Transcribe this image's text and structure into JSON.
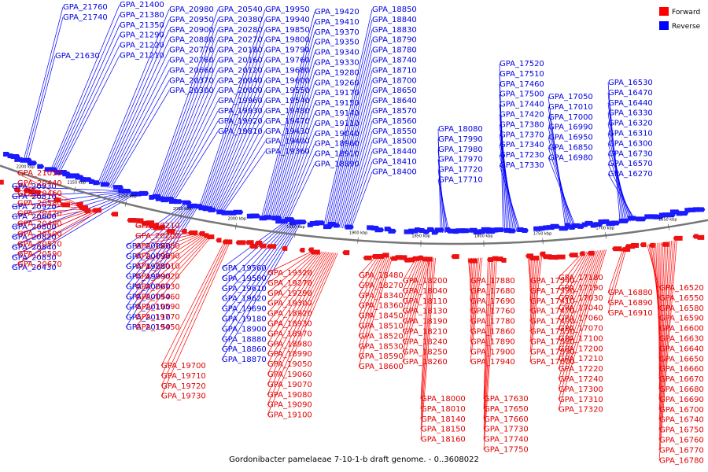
{
  "caption": "Gordonibacter pamelaeae 7-10-1-b draft genome. - 0..3608022",
  "legend": {
    "forward": {
      "label": "Forward",
      "color": "#ff0000"
    },
    "reverse": {
      "label": "Reverse",
      "color": "#0000ff"
    }
  },
  "ticks": [
    "2200 kbp",
    "2150 kbp",
    "2100 kbp",
    "2050 kbp",
    "2000 kbp",
    "1950 kbp",
    "1900 kbp",
    "1850 kbp",
    "1800 kbp",
    "1750 kbp",
    "1700 kbp",
    "1650 kbp"
  ],
  "reverse_labels": [
    "GPA_21760",
    "GPA_21740",
    "GPA_21400",
    "GPA_21380",
    "GPA_21350",
    "GPA_21290",
    "GPA_21220",
    "GPA_21210",
    "GPA_21630",
    "GPA_20980",
    "GPA_20950",
    "GPA_20900",
    "GPA_20880",
    "GPA_20770",
    "GPA_20760",
    "GPA_20660",
    "GPA_20370",
    "GPA_20300",
    "GPA_20540",
    "GPA_20380",
    "GPA_20280",
    "GPA_20270",
    "GPA_20180",
    "GPA_20160",
    "GPA_20120",
    "GPA_20040",
    "GPA_20000",
    "GPA_19960",
    "GPA_19930",
    "GPA_19920",
    "GPA_19810",
    "GPA_19950",
    "GPA_19940",
    "GPA_19850",
    "GPA_19800",
    "GPA_19790",
    "GPA_19760",
    "GPA_19680",
    "GPA_19600",
    "GPA_19550",
    "GPA_19540",
    "GPA_19480",
    "GPA_19470",
    "GPA_19430",
    "GPA_19400",
    "GPA_19360",
    "GPA_19420",
    "GPA_19410",
    "GPA_19370",
    "GPA_19350",
    "GPA_19340",
    "GPA_19330",
    "GPA_19280",
    "GPA_19260",
    "GPA_19170",
    "GPA_19150",
    "GPA_19140",
    "GPA_19110",
    "GPA_19040",
    "GPA_18960",
    "GPA_18910",
    "GPA_18890",
    "GPA_18850",
    "GPA_18840",
    "GPA_18830",
    "GPA_18790",
    "GPA_18780",
    "GPA_18740",
    "GPA_18710",
    "GPA_18700",
    "GPA_18650",
    "GPA_18640",
    "GPA_18570",
    "GPA_18560",
    "GPA_18550",
    "GPA_18500",
    "GPA_18440",
    "GPA_18410",
    "GPA_18400",
    "GPA_18080",
    "GPA_17990",
    "GPA_17980",
    "GPA_17970",
    "GPA_17720",
    "GPA_17710",
    "GPA_17520",
    "GPA_17510",
    "GPA_17460",
    "GPA_17500",
    "GPA_17440",
    "GPA_17420",
    "GPA_17380",
    "GPA_17370",
    "GPA_17340",
    "GPA_17230",
    "GPA_17330",
    "GPA_17050",
    "GPA_17010",
    "GPA_17000",
    "GPA_16990",
    "GPA_16950",
    "GPA_16850",
    "GPA_16980",
    "GPA_16530",
    "GPA_16470",
    "GPA_16440",
    "GPA_16330",
    "GPA_16320",
    "GPA_16310",
    "GPA_16300",
    "GPA_16730",
    "GPA_16570",
    "GPA_16270",
    "GPA_20930",
    "GPA_20810",
    "GPA_20920",
    "GPA_20600",
    "GPA_20800",
    "GPA_20820",
    "GPA_20840",
    "GPA_20850",
    "GPA_20430",
    "GPA_20080",
    "GPA_20090",
    "GPA_19880",
    "GPA_19990",
    "GPA_20060",
    "GPA_20050",
    "GPA_20100",
    "GPA_20110",
    "GPA_20150",
    "GPA_19560",
    "GPA_19580",
    "GPA_19610",
    "GPA_19620",
    "GPA_19690",
    "GPA_19180",
    "GPA_18900",
    "GPA_18880",
    "GPA_18860",
    "GPA_18870"
  ],
  "forward_labels": [
    "GPA_21050",
    "GPA_20440",
    "GPA_20460",
    "GPA_20580",
    "GPA_20470",
    "GPA_20490",
    "GPA_20500",
    "GPA_20570",
    "GPA_20590",
    "GPA_20670",
    "GPA_20210",
    "GPA_20200",
    "GPA_19780",
    "GPA_19890",
    "GPA_20010",
    "GPA_20020",
    "GPA_20130",
    "GPA_19460",
    "GPA_19590",
    "GPA_19770",
    "GPA_19450",
    "GPA_19700",
    "GPA_19710",
    "GPA_19720",
    "GPA_19730",
    "GPA_19320",
    "GPA_19270",
    "GPA_19290",
    "GPA_19300",
    "GPA_18920",
    "GPA_18930",
    "GPA_18970",
    "GPA_18980",
    "GPA_18990",
    "GPA_19050",
    "GPA_19060",
    "GPA_19070",
    "GPA_19080",
    "GPA_19090",
    "GPA_19100",
    "GPA_18480",
    "GPA_18270",
    "GPA_18340",
    "GPA_18360",
    "GPA_18450",
    "GPA_18510",
    "GPA_18520",
    "GPA_18530",
    "GPA_18590",
    "GPA_18600",
    "GPA_18200",
    "GPA_18040",
    "GPA_18110",
    "GPA_18130",
    "GPA_18190",
    "GPA_18210",
    "GPA_18240",
    "GPA_18250",
    "GPA_18260",
    "GPA_18000",
    "GPA_18010",
    "GPA_18140",
    "GPA_18150",
    "GPA_18160",
    "GPA_17880",
    "GPA_17680",
    "GPA_17690",
    "GPA_17760",
    "GPA_17780",
    "GPA_17860",
    "GPA_17890",
    "GPA_17900",
    "GPA_17940",
    "GPA_17630",
    "GPA_17650",
    "GPA_17660",
    "GPA_17730",
    "GPA_17740",
    "GPA_17750",
    "GPA_17540",
    "GPA_17390",
    "GPA_17410",
    "GPA_17470",
    "GPA_17490",
    "GPA_17550",
    "GPA_17580",
    "GPA_17590",
    "GPA_17600",
    "GPA_17180",
    "GPA_17190",
    "GPA_17030",
    "GPA_17040",
    "GPA_17060",
    "GPA_17070",
    "GPA_17100",
    "GPA_17200",
    "GPA_17210",
    "GPA_17220",
    "GPA_17240",
    "GPA_17300",
    "GPA_17310",
    "GPA_17320",
    "GPA_16880",
    "GPA_16890",
    "GPA_16910",
    "GPA_16520",
    "GPA_16550",
    "GPA_16580",
    "GPA_16590",
    "GPA_16600",
    "GPA_16630",
    "GPA_16640",
    "GPA_16650",
    "GPA_16660",
    "GPA_16670",
    "GPA_16680",
    "GPA_16690",
    "GPA_16700",
    "GPA_16740",
    "GPA_16750",
    "GPA_16760",
    "GPA_16770",
    "GPA_16780"
  ]
}
